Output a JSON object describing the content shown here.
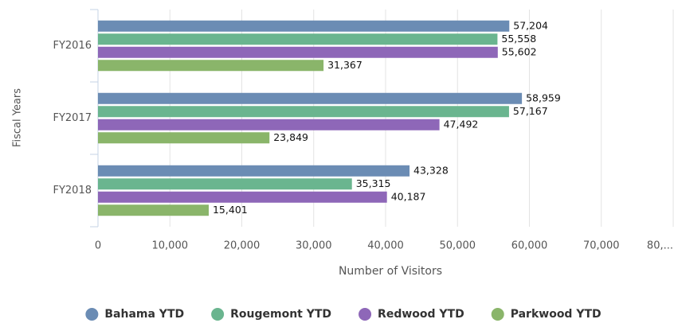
{
  "chart_data": {
    "type": "bar",
    "orientation": "horizontal",
    "y_axis_title": "Fiscal Years",
    "x_axis_title": "Number of Visitors",
    "categories": [
      "FY2016",
      "FY2017",
      "FY2018"
    ],
    "series": [
      {
        "name": "Bahama YTD",
        "color": "#6b8cb4",
        "values": [
          57204,
          58959,
          43328
        ],
        "value_labels": [
          "57,204",
          "58,959",
          "43,328"
        ]
      },
      {
        "name": "Rougemont YTD",
        "color": "#6ab58f",
        "values": [
          55558,
          57167,
          35315
        ],
        "value_labels": [
          "55,558",
          "57,167",
          "35,315"
        ]
      },
      {
        "name": "Redwood YTD",
        "color": "#8e67b8",
        "values": [
          55602,
          47492,
          40187
        ],
        "value_labels": [
          "55,602",
          "47,492",
          "40,187"
        ]
      },
      {
        "name": "Parkwood YTD",
        "color": "#8ab56a",
        "values": [
          31367,
          23849,
          15401
        ],
        "value_labels": [
          "31,367",
          "23,849",
          "15,401"
        ]
      }
    ],
    "xlim": [
      0,
      80000
    ],
    "xticks": [
      0,
      {
        "value": 10000,
        "label": "10,000"
      },
      {
        "value": 20000,
        "label": "20,000"
      },
      {
        "value": 30000,
        "label": "30,000"
      },
      {
        "value": 40000,
        "label": "40,000"
      },
      {
        "value": 50000,
        "label": "50,000"
      },
      {
        "value": 60000,
        "label": "60,000"
      },
      {
        "value": 70000,
        "label": "70,000"
      },
      {
        "value": 80000,
        "label": "80,..."
      }
    ],
    "grid": true,
    "legend": "bottom"
  }
}
